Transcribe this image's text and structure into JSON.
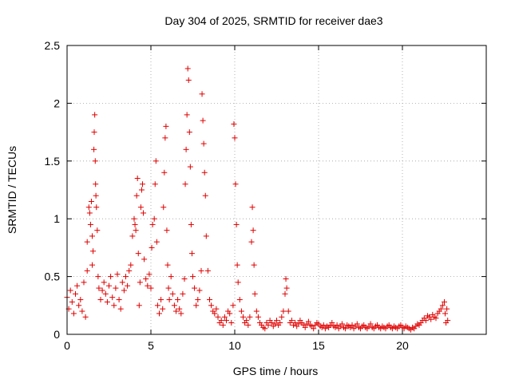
{
  "chart_data": {
    "type": "scatter",
    "title": "Day 304 of 2025, SRMTID for receiver dae3",
    "xlabel": "GPS time / hours",
    "ylabel": "SRMTID / TECUs",
    "xlim": [
      0,
      25
    ],
    "ylim": [
      0,
      2.5
    ],
    "xticks": [
      0,
      5,
      10,
      15,
      20
    ],
    "xtick_labels": [
      "0",
      "5",
      "10",
      "15",
      "20"
    ],
    "yticks": [
      0,
      0.5,
      1,
      1.5,
      2,
      2.5
    ],
    "ytick_labels": [
      "0",
      "0.5",
      "1",
      "1.5",
      "2",
      "2.5"
    ],
    "grid": true,
    "marker": "+",
    "color": "#e00000",
    "series": [
      {
        "name": "SRMTID",
        "points": [
          [
            0.0,
            0.32
          ],
          [
            0.1,
            0.22
          ],
          [
            0.2,
            0.38
          ],
          [
            0.3,
            0.28
          ],
          [
            0.4,
            0.18
          ],
          [
            0.5,
            0.35
          ],
          [
            0.6,
            0.42
          ],
          [
            0.7,
            0.25
          ],
          [
            0.8,
            0.3
          ],
          [
            0.9,
            0.2
          ],
          [
            1.0,
            0.45
          ],
          [
            1.1,
            0.15
          ],
          [
            1.2,
            0.55
          ],
          [
            1.2,
            0.8
          ],
          [
            1.3,
            1.1
          ],
          [
            1.35,
            1.05
          ],
          [
            1.4,
            0.95
          ],
          [
            1.45,
            1.15
          ],
          [
            1.5,
            0.85
          ],
          [
            1.5,
            0.6
          ],
          [
            1.55,
            0.72
          ],
          [
            1.6,
            1.6
          ],
          [
            1.62,
            1.75
          ],
          [
            1.65,
            1.9
          ],
          [
            1.68,
            1.5
          ],
          [
            1.7,
            1.3
          ],
          [
            1.72,
            1.2
          ],
          [
            1.75,
            1.1
          ],
          [
            1.8,
            0.9
          ],
          [
            1.85,
            0.5
          ],
          [
            1.9,
            0.4
          ],
          [
            2.0,
            0.3
          ],
          [
            2.1,
            0.38
          ],
          [
            2.2,
            0.45
          ],
          [
            2.3,
            0.35
          ],
          [
            2.4,
            0.28
          ],
          [
            2.5,
            0.42
          ],
          [
            2.6,
            0.5
          ],
          [
            2.7,
            0.32
          ],
          [
            2.8,
            0.25
          ],
          [
            2.9,
            0.4
          ],
          [
            3.0,
            0.52
          ],
          [
            3.1,
            0.3
          ],
          [
            3.2,
            0.22
          ],
          [
            3.3,
            0.45
          ],
          [
            3.4,
            0.38
          ],
          [
            3.5,
            0.5
          ],
          [
            3.6,
            0.42
          ],
          [
            3.7,
            0.55
          ],
          [
            3.8,
            0.6
          ],
          [
            3.9,
            0.85
          ],
          [
            4.0,
            1.0
          ],
          [
            4.05,
            0.95
          ],
          [
            4.1,
            0.9
          ],
          [
            4.15,
            1.2
          ],
          [
            4.2,
            1.35
          ],
          [
            4.25,
            0.7
          ],
          [
            4.3,
            0.25
          ],
          [
            4.35,
            0.45
          ],
          [
            4.4,
            1.1
          ],
          [
            4.45,
            1.25
          ],
          [
            4.5,
            1.3
          ],
          [
            4.55,
            1.05
          ],
          [
            4.6,
            0.65
          ],
          [
            4.7,
            0.48
          ],
          [
            4.8,
            0.42
          ],
          [
            4.9,
            0.52
          ],
          [
            5.0,
            0.4
          ],
          [
            5.05,
            0.75
          ],
          [
            5.1,
            0.95
          ],
          [
            5.2,
            1.0
          ],
          [
            5.25,
            1.3
          ],
          [
            5.3,
            1.5
          ],
          [
            5.35,
            0.8
          ],
          [
            5.4,
            0.25
          ],
          [
            5.5,
            0.18
          ],
          [
            5.6,
            0.3
          ],
          [
            5.7,
            0.22
          ],
          [
            5.75,
            1.1
          ],
          [
            5.8,
            1.4
          ],
          [
            5.85,
            1.7
          ],
          [
            5.9,
            1.8
          ],
          [
            5.95,
            0.9
          ],
          [
            6.0,
            0.6
          ],
          [
            6.05,
            0.4
          ],
          [
            6.1,
            0.3
          ],
          [
            6.2,
            0.5
          ],
          [
            6.3,
            0.35
          ],
          [
            6.4,
            0.25
          ],
          [
            6.5,
            0.2
          ],
          [
            6.6,
            0.3
          ],
          [
            6.7,
            0.22
          ],
          [
            6.8,
            0.18
          ],
          [
            6.9,
            0.35
          ],
          [
            7.0,
            0.48
          ],
          [
            7.05,
            1.3
          ],
          [
            7.1,
            1.6
          ],
          [
            7.15,
            1.9
          ],
          [
            7.2,
            2.3
          ],
          [
            7.25,
            2.2
          ],
          [
            7.3,
            1.75
          ],
          [
            7.35,
            1.45
          ],
          [
            7.4,
            0.95
          ],
          [
            7.45,
            0.7
          ],
          [
            7.5,
            0.5
          ],
          [
            7.6,
            0.4
          ],
          [
            7.7,
            0.25
          ],
          [
            7.8,
            0.3
          ],
          [
            7.9,
            0.38
          ],
          [
            8.0,
            0.55
          ],
          [
            8.05,
            2.08
          ],
          [
            8.1,
            1.85
          ],
          [
            8.15,
            1.65
          ],
          [
            8.2,
            1.4
          ],
          [
            8.25,
            1.2
          ],
          [
            8.3,
            0.85
          ],
          [
            8.4,
            0.55
          ],
          [
            8.5,
            0.3
          ],
          [
            8.6,
            0.25
          ],
          [
            8.7,
            0.2
          ],
          [
            8.8,
            0.18
          ],
          [
            8.9,
            0.22
          ],
          [
            9.0,
            0.15
          ],
          [
            9.1,
            0.1
          ],
          [
            9.2,
            0.12
          ],
          [
            9.3,
            0.08
          ],
          [
            9.4,
            0.15
          ],
          [
            9.5,
            0.12
          ],
          [
            9.6,
            0.2
          ],
          [
            9.7,
            0.18
          ],
          [
            9.8,
            0.1
          ],
          [
            9.9,
            0.25
          ],
          [
            9.95,
            1.82
          ],
          [
            10.0,
            1.7
          ],
          [
            10.05,
            1.3
          ],
          [
            10.1,
            0.95
          ],
          [
            10.15,
            0.6
          ],
          [
            10.2,
            0.45
          ],
          [
            10.3,
            0.3
          ],
          [
            10.4,
            0.2
          ],
          [
            10.5,
            0.15
          ],
          [
            10.6,
            0.1
          ],
          [
            10.7,
            0.12
          ],
          [
            10.8,
            0.08
          ],
          [
            10.9,
            0.15
          ],
          [
            11.0,
            0.8
          ],
          [
            11.05,
            1.1
          ],
          [
            11.1,
            0.9
          ],
          [
            11.15,
            0.6
          ],
          [
            11.2,
            0.35
          ],
          [
            11.3,
            0.2
          ],
          [
            11.4,
            0.15
          ],
          [
            11.5,
            0.1
          ],
          [
            11.6,
            0.08
          ],
          [
            11.7,
            0.06
          ],
          [
            11.8,
            0.05
          ],
          [
            11.9,
            0.1
          ],
          [
            12.0,
            0.08
          ],
          [
            12.1,
            0.12
          ],
          [
            12.2,
            0.1
          ],
          [
            12.3,
            0.07
          ],
          [
            12.4,
            0.09
          ],
          [
            12.5,
            0.12
          ],
          [
            12.6,
            0.08
          ],
          [
            12.7,
            0.1
          ],
          [
            12.8,
            0.15
          ],
          [
            12.9,
            0.2
          ],
          [
            13.0,
            0.35
          ],
          [
            13.05,
            0.48
          ],
          [
            13.1,
            0.4
          ],
          [
            13.2,
            0.2
          ],
          [
            13.3,
            0.1
          ],
          [
            13.4,
            0.12
          ],
          [
            13.5,
            0.08
          ],
          [
            13.6,
            0.1
          ],
          [
            13.7,
            0.07
          ],
          [
            13.8,
            0.09
          ],
          [
            13.9,
            0.12
          ],
          [
            14.0,
            0.1
          ],
          [
            14.1,
            0.08
          ],
          [
            14.2,
            0.06
          ],
          [
            14.3,
            0.09
          ],
          [
            14.4,
            0.11
          ],
          [
            14.5,
            0.08
          ],
          [
            14.6,
            0.07
          ],
          [
            14.7,
            0.05
          ],
          [
            14.8,
            0.08
          ],
          [
            14.9,
            0.1
          ],
          [
            15.0,
            0.09
          ],
          [
            15.1,
            0.07
          ],
          [
            15.2,
            0.06
          ],
          [
            15.3,
            0.08
          ],
          [
            15.4,
            0.05
          ],
          [
            15.5,
            0.07
          ],
          [
            15.6,
            0.06
          ],
          [
            15.7,
            0.08
          ],
          [
            15.8,
            0.1
          ],
          [
            15.9,
            0.07
          ],
          [
            16.0,
            0.06
          ],
          [
            16.1,
            0.08
          ],
          [
            16.2,
            0.05
          ],
          [
            16.3,
            0.07
          ],
          [
            16.4,
            0.09
          ],
          [
            16.5,
            0.06
          ],
          [
            16.6,
            0.05
          ],
          [
            16.7,
            0.08
          ],
          [
            16.8,
            0.07
          ],
          [
            16.9,
            0.06
          ],
          [
            17.0,
            0.08
          ],
          [
            17.1,
            0.05
          ],
          [
            17.2,
            0.07
          ],
          [
            17.3,
            0.09
          ],
          [
            17.4,
            0.06
          ],
          [
            17.5,
            0.05
          ],
          [
            17.6,
            0.07
          ],
          [
            17.7,
            0.08
          ],
          [
            17.8,
            0.06
          ],
          [
            17.9,
            0.05
          ],
          [
            18.0,
            0.07
          ],
          [
            18.1,
            0.09
          ],
          [
            18.2,
            0.06
          ],
          [
            18.3,
            0.05
          ],
          [
            18.4,
            0.07
          ],
          [
            18.5,
            0.08
          ],
          [
            18.6,
            0.06
          ],
          [
            18.7,
            0.05
          ],
          [
            18.8,
            0.07
          ],
          [
            18.9,
            0.06
          ],
          [
            19.0,
            0.05
          ],
          [
            19.1,
            0.07
          ],
          [
            19.2,
            0.08
          ],
          [
            19.3,
            0.06
          ],
          [
            19.4,
            0.05
          ],
          [
            19.5,
            0.07
          ],
          [
            19.6,
            0.06
          ],
          [
            19.7,
            0.05
          ],
          [
            19.8,
            0.07
          ],
          [
            19.9,
            0.08
          ],
          [
            20.0,
            0.06
          ],
          [
            20.1,
            0.05
          ],
          [
            20.2,
            0.07
          ],
          [
            20.3,
            0.06
          ],
          [
            20.4,
            0.05
          ],
          [
            20.5,
            0.04
          ],
          [
            20.6,
            0.06
          ],
          [
            20.7,
            0.05
          ],
          [
            20.8,
            0.07
          ],
          [
            20.9,
            0.09
          ],
          [
            21.0,
            0.08
          ],
          [
            21.1,
            0.1
          ],
          [
            21.2,
            0.12
          ],
          [
            21.3,
            0.14
          ],
          [
            21.4,
            0.12
          ],
          [
            21.5,
            0.16
          ],
          [
            21.6,
            0.15
          ],
          [
            21.7,
            0.13
          ],
          [
            21.8,
            0.17
          ],
          [
            21.9,
            0.15
          ],
          [
            22.0,
            0.14
          ],
          [
            22.1,
            0.18
          ],
          [
            22.2,
            0.2
          ],
          [
            22.3,
            0.22
          ],
          [
            22.4,
            0.25
          ],
          [
            22.5,
            0.28
          ],
          [
            22.55,
            0.18
          ],
          [
            22.6,
            0.1
          ],
          [
            22.65,
            0.22
          ],
          [
            22.7,
            0.12
          ]
        ]
      }
    ]
  }
}
